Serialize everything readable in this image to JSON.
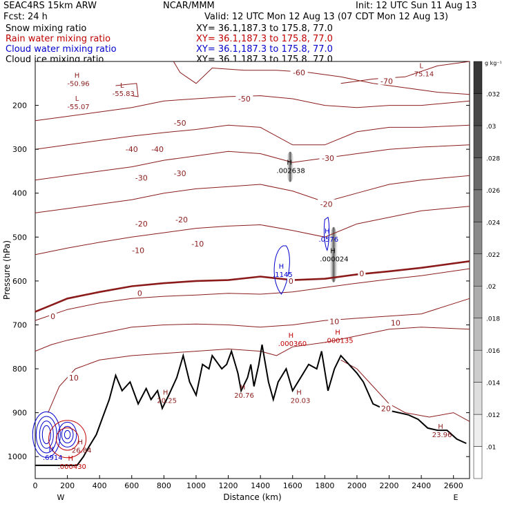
{
  "header": {
    "model": "SEAC4RS 15km ARW",
    "center": "NCAR/MMM",
    "init": "Init: 12 UTC Sun 11 Aug 13",
    "fcst": "Fcst:    24 h",
    "valid": "Valid: 12 UTC Mon 12 Aug 13 (07 CDT Mon 12 Aug 13)"
  },
  "fields": [
    {
      "label": "Snow mixing ratio",
      "xy": "XY=  36.1,187.3 to 175.8, 77.0",
      "color": "#000000"
    },
    {
      "label": "Rain water mixing ratio",
      "xy": "XY=  36.1,187.3 to 175.8, 77.0",
      "color": "#c00000"
    },
    {
      "label": "Cloud water mixing ratio",
      "xy": "XY=  36.1,187.3 to 175.8, 77.0",
      "color": "#0000cc"
    },
    {
      "label": "Cloud ice mixing ratio",
      "xy": "XY=  36.1,187.3 to 175.8, 77.0",
      "color": "#000000"
    }
  ],
  "chart_data": {
    "type": "contour",
    "xlabel": "Distance (km)",
    "ylabel": "Pressure (hPa)",
    "xlim": [
      0,
      2700
    ],
    "ylim": [
      1050,
      100
    ],
    "x_ticks": [
      0,
      200,
      400,
      600,
      800,
      1000,
      1200,
      1400,
      1600,
      1800,
      2000,
      2200,
      2400,
      2600
    ],
    "y_ticks": [
      200,
      300,
      400,
      500,
      600,
      700,
      800,
      900,
      1000
    ],
    "end_labels": {
      "left": "W",
      "right": "E"
    },
    "colorbar": {
      "unit": "g kg⁻¹",
      "ticks": [
        ".01",
        ".012",
        ".014",
        ".016",
        ".018",
        ".02",
        ".022",
        ".024",
        ".026",
        ".028",
        ".03",
        ".032"
      ]
    },
    "temperature_contours": {
      "color": "#8b1a1a",
      "levels": [
        -70,
        -60,
        -50,
        -40,
        -30,
        -20,
        -10,
        0,
        10,
        20
      ],
      "labels": [
        {
          "text": "-70",
          "x": 2185,
          "p": 145
        },
        {
          "text": "-60",
          "x": 1640,
          "p": 125
        },
        {
          "text": "-50",
          "x": 1300,
          "p": 185
        },
        {
          "text": "-50",
          "x": 900,
          "p": 240
        },
        {
          "text": "-40",
          "x": 760,
          "p": 300
        },
        {
          "text": "-40",
          "x": 600,
          "p": 300
        },
        {
          "text": "-30",
          "x": 1820,
          "p": 320
        },
        {
          "text": "-30",
          "x": 900,
          "p": 355
        },
        {
          "text": "-30",
          "x": 660,
          "p": 365
        },
        {
          "text": "-20",
          "x": 1810,
          "p": 425
        },
        {
          "text": "-20",
          "x": 910,
          "p": 460
        },
        {
          "text": "-20",
          "x": 660,
          "p": 470
        },
        {
          "text": "-10",
          "x": 1010,
          "p": 515
        },
        {
          "text": "-10",
          "x": 640,
          "p": 530
        },
        {
          "text": "0",
          "x": 1590,
          "p": 600
        },
        {
          "text": "0",
          "x": 2030,
          "p": 583
        },
        {
          "text": "0",
          "x": 650,
          "p": 628
        },
        {
          "text": "0",
          "x": 110,
          "p": 680
        },
        {
          "text": "10",
          "x": 2240,
          "p": 695
        },
        {
          "text": "10",
          "x": 1860,
          "p": 692
        },
        {
          "text": "10",
          "x": 240,
          "p": 820
        },
        {
          "text": "20",
          "x": 2180,
          "p": 890
        }
      ],
      "extrema": [
        {
          "kind": "H",
          "value": "-50.96",
          "x": 260,
          "p": 140
        },
        {
          "kind": "L",
          "value": "-55.07",
          "x": 260,
          "p": 193
        },
        {
          "kind": "L",
          "value": "-55.83",
          "x": 540,
          "p": 163
        },
        {
          "kind": "L",
          "value": "-75.14",
          "x": 2400,
          "p": 118
        },
        {
          "kind": "H",
          "value": "20.25",
          "x": 810,
          "p": 862
        },
        {
          "kind": "H",
          "value": "20.76",
          "x": 1290,
          "p": 850
        },
        {
          "kind": "H",
          "value": "20.03",
          "x": 1640,
          "p": 862
        },
        {
          "kind": "H",
          "value": "23.96",
          "x": 2520,
          "p": 940
        },
        {
          "kind": "H",
          "value": "26.84",
          "x": 280,
          "p": 975
        }
      ]
    },
    "rain_water_extrema": [
      {
        "kind": "H",
        "value": ".000360",
        "x": 1590,
        "p": 732
      },
      {
        "kind": "H",
        "value": ".000135",
        "x": 1880,
        "p": 725
      },
      {
        "kind": "H",
        "value": ".000430",
        "x": 220,
        "p": 1012
      }
    ],
    "cloud_water_extrema": [
      {
        "kind": "H",
        "value": ".1145",
        "x": 1530,
        "p": 575
      },
      {
        "kind": "H",
        "value": ".0576",
        "x": 1815,
        "p": 495
      },
      {
        "kind": "H",
        "value": ".6914",
        "x": 100,
        "p": 992
      }
    ],
    "snow_extrema": [
      {
        "kind": "H",
        "value": ".000024",
        "x": 1850,
        "p": 540
      }
    ],
    "ice_extrema": [
      {
        "kind": "H",
        "value": ".002638",
        "x": 1580,
        "p": 338
      }
    ],
    "terrain_surface_pressure": [
      [
        0,
        1020
      ],
      [
        100,
        1020
      ],
      [
        260,
        1020
      ],
      [
        300,
        1000
      ],
      [
        330,
        980
      ],
      [
        380,
        950
      ],
      [
        420,
        910
      ],
      [
        460,
        870
      ],
      [
        500,
        815
      ],
      [
        540,
        850
      ],
      [
        590,
        830
      ],
      [
        640,
        880
      ],
      [
        690,
        845
      ],
      [
        720,
        870
      ],
      [
        760,
        850
      ],
      [
        790,
        890
      ],
      [
        830,
        860
      ],
      [
        880,
        820
      ],
      [
        920,
        770
      ],
      [
        960,
        830
      ],
      [
        1000,
        860
      ],
      [
        1040,
        790
      ],
      [
        1080,
        800
      ],
      [
        1100,
        770
      ],
      [
        1160,
        800
      ],
      [
        1190,
        790
      ],
      [
        1220,
        760
      ],
      [
        1260,
        810
      ],
      [
        1280,
        850
      ],
      [
        1320,
        820
      ],
      [
        1340,
        790
      ],
      [
        1360,
        840
      ],
      [
        1390,
        790
      ],
      [
        1410,
        745
      ],
      [
        1450,
        830
      ],
      [
        1480,
        870
      ],
      [
        1510,
        830
      ],
      [
        1560,
        800
      ],
      [
        1600,
        850
      ],
      [
        1650,
        820
      ],
      [
        1700,
        790
      ],
      [
        1750,
        800
      ],
      [
        1780,
        760
      ],
      [
        1820,
        850
      ],
      [
        1860,
        800
      ],
      [
        1900,
        770
      ],
      [
        1950,
        790
      ],
      [
        2000,
        810
      ],
      [
        2040,
        830
      ],
      [
        2100,
        880
      ],
      [
        2160,
        890
      ],
      [
        2200,
        895
      ],
      [
        2260,
        900
      ],
      [
        2320,
        905
      ],
      [
        2380,
        915
      ],
      [
        2440,
        935
      ],
      [
        2500,
        940
      ],
      [
        2560,
        940
      ],
      [
        2620,
        960
      ],
      [
        2680,
        970
      ]
    ]
  }
}
